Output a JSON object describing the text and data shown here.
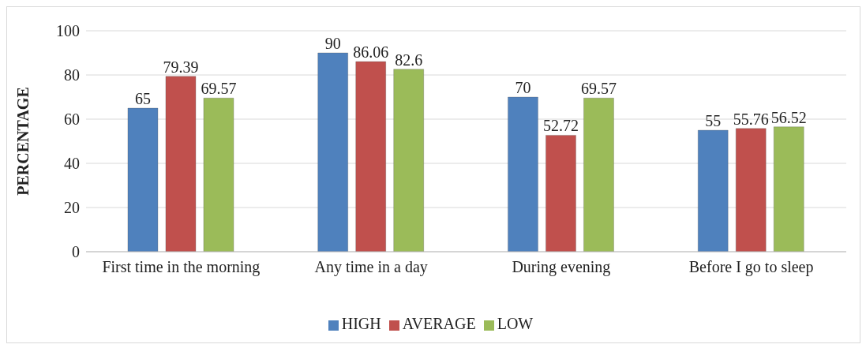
{
  "chart_data": {
    "type": "bar",
    "ylabel": "PERCENTAGE",
    "categories": [
      "First time in the morning",
      "Any time in a day",
      "During evening",
      "Before I go to sleep"
    ],
    "series": [
      {
        "name": "HIGH",
        "color": "#4f81bd",
        "values": [
          65,
          90,
          70,
          55
        ]
      },
      {
        "name": "AVERAGE",
        "color": "#c0504d",
        "values": [
          79.39,
          86.06,
          52.72,
          55.76
        ]
      },
      {
        "name": "LOW",
        "color": "#9bbb59",
        "values": [
          69.57,
          82.6,
          69.57,
          56.52
        ]
      }
    ],
    "ylim": [
      0,
      100
    ],
    "yticks": [
      0,
      20,
      40,
      60,
      80,
      100
    ],
    "grid": "y",
    "legend": "bottom",
    "data_labels": true
  }
}
